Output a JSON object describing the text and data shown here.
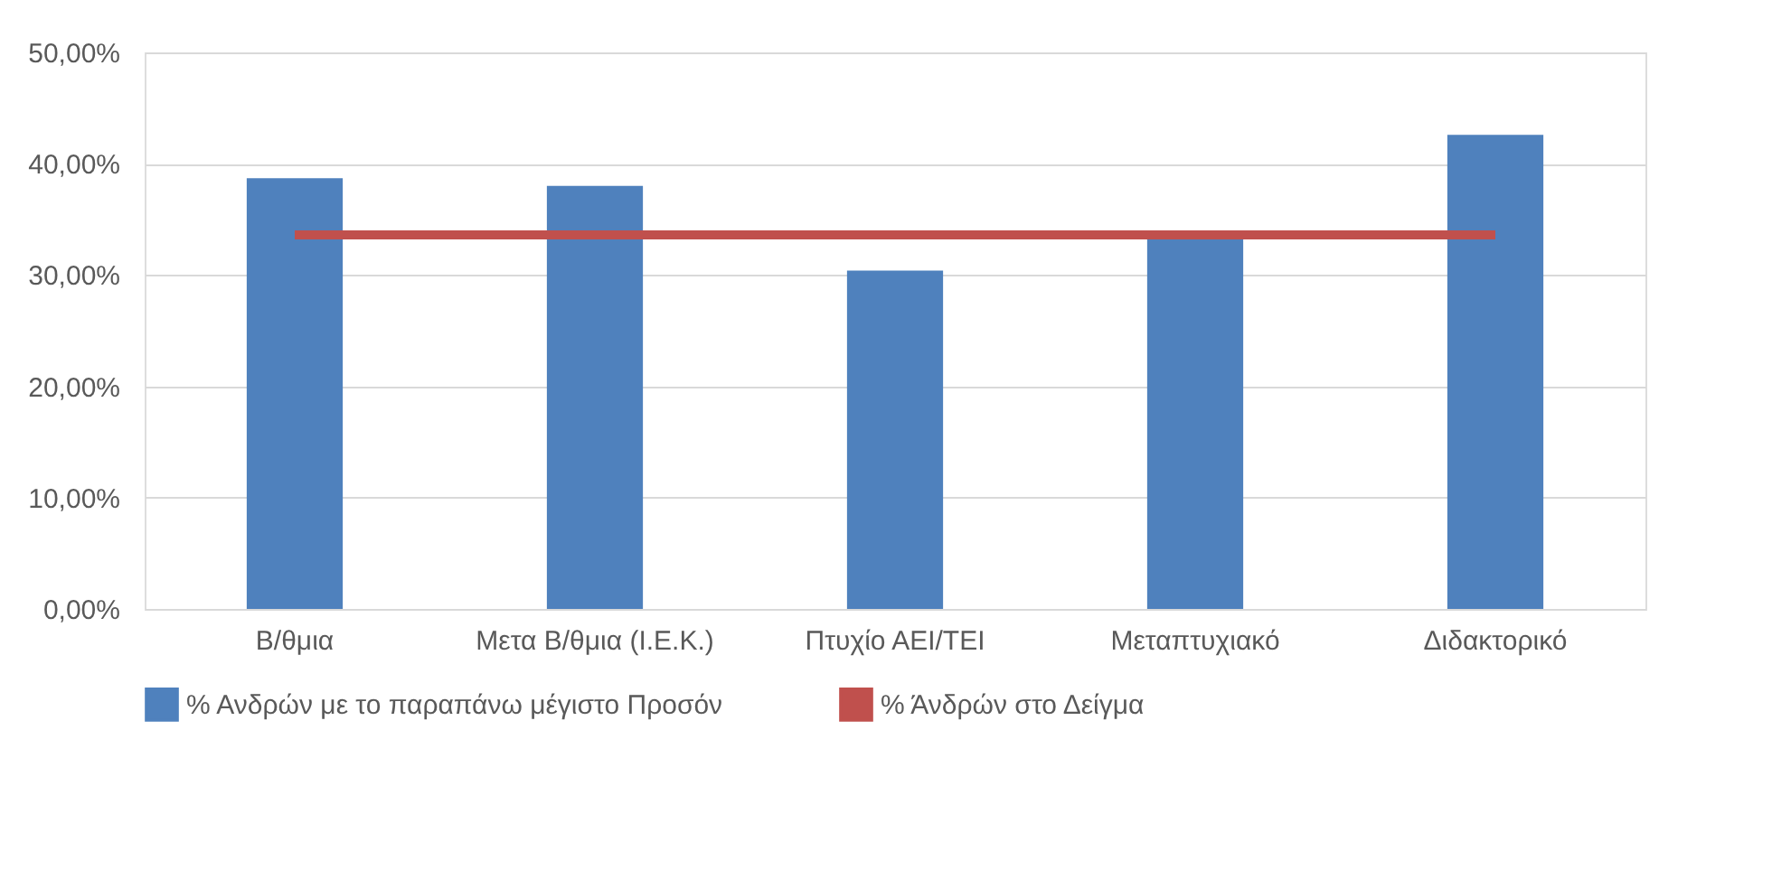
{
  "chart_data": {
    "type": "bar",
    "categories": [
      "Β/θμια",
      "Μετα Β/θμια (Ι.Ε.Κ.)",
      "Πτυχίο ΑΕΙ/ΤΕΙ",
      "Μεταπτυχιακό",
      "Διδακτορικό"
    ],
    "series": [
      {
        "name": "% Ανδρών με το παραπάνω μέγιστο Προσόν",
        "color": "#4f81bd",
        "values": [
          38.7,
          38.0,
          30.4,
          33.5,
          42.6
        ]
      },
      {
        "name": "% Άνδρών στο Δείγμα",
        "type": "line",
        "color": "#c0504d",
        "values": [
          33.6,
          33.6,
          33.6,
          33.6,
          33.6
        ]
      }
    ],
    "ylim": [
      0,
      50
    ],
    "yticks": [
      {
        "value": 0,
        "label": "0,00%"
      },
      {
        "value": 10,
        "label": "10,00%"
      },
      {
        "value": 20,
        "label": "20,00%"
      },
      {
        "value": 30,
        "label": "30,00%"
      },
      {
        "value": 40,
        "label": "40,00%"
      },
      {
        "value": 50,
        "label": "50,00%"
      }
    ],
    "grid": "y",
    "legend": "bottom"
  }
}
